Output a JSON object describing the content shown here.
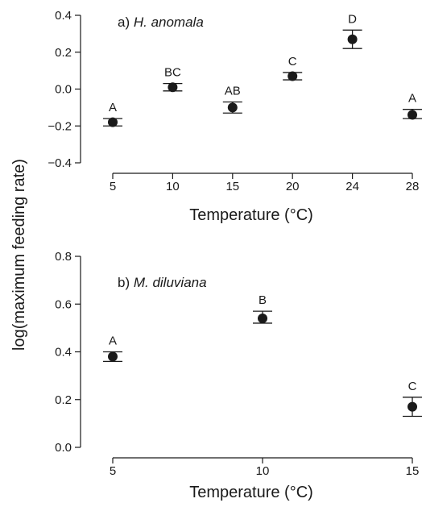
{
  "ylabel": "log(maximum feeding rate)",
  "chart_data": [
    {
      "type": "scatter",
      "panel_prefix": "a) ",
      "species": "H. anomala",
      "xlabel": "Temperature (°C)",
      "categories": [
        "5",
        "10",
        "15",
        "20",
        "24",
        "28"
      ],
      "values": [
        -0.18,
        0.01,
        -0.1,
        0.07,
        0.27,
        -0.14
      ],
      "err_low": [
        -0.2,
        -0.01,
        -0.13,
        0.05,
        0.22,
        -0.16
      ],
      "err_high": [
        -0.16,
        0.03,
        -0.07,
        0.09,
        0.32,
        -0.11
      ],
      "sig_labels": [
        "A",
        "BC",
        "AB",
        "C",
        "D",
        "A"
      ],
      "ylim": [
        -0.4,
        0.4
      ],
      "yticks": [
        "0.4",
        "0.2",
        "0.0",
        "−0.2",
        "−0.4"
      ],
      "ytick_values": [
        0.4,
        0.2,
        0.0,
        -0.2,
        -0.4
      ],
      "grid": false
    },
    {
      "type": "scatter",
      "panel_prefix": "b) ",
      "species": "M. diluviana",
      "xlabel": "Temperature (°C)",
      "categories": [
        "5",
        "10",
        "15"
      ],
      "values": [
        0.38,
        0.54,
        0.17
      ],
      "err_low": [
        0.36,
        0.52,
        0.13
      ],
      "err_high": [
        0.4,
        0.57,
        0.21
      ],
      "sig_labels": [
        "A",
        "B",
        "C"
      ],
      "ylim": [
        0.0,
        0.8
      ],
      "yticks": [
        "0.8",
        "0.6",
        "0.4",
        "0.2",
        "0.0"
      ],
      "ytick_values": [
        0.8,
        0.6,
        0.4,
        0.2,
        0.0
      ],
      "grid": false
    }
  ]
}
